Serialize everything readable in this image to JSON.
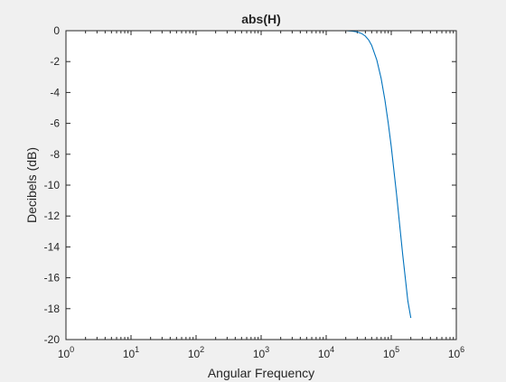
{
  "chart_data": {
    "type": "line",
    "title": "abs(H)",
    "xlabel": "Angular Frequency",
    "ylabel": "Decibels (dB)",
    "xscale": "log",
    "xlim": [
      1,
      1000000
    ],
    "ylim": [
      -20,
      0
    ],
    "grid": false,
    "x_ticks": [
      {
        "base": "10",
        "exp": "0"
      },
      {
        "base": "10",
        "exp": "1"
      },
      {
        "base": "10",
        "exp": "2"
      },
      {
        "base": "10",
        "exp": "3"
      },
      {
        "base": "10",
        "exp": "4"
      },
      {
        "base": "10",
        "exp": "5"
      },
      {
        "base": "10",
        "exp": "6"
      }
    ],
    "y_ticks": [
      "0",
      "-2",
      "-4",
      "-6",
      "-8",
      "-10",
      "-12",
      "-14",
      "-16",
      "-18",
      "-20"
    ],
    "series": [
      {
        "color": "#0072bd",
        "x": [
          1,
          10,
          100,
          1000,
          10000,
          20000,
          25000,
          30000,
          35000,
          40000,
          45000,
          50000,
          60000,
          70000,
          80000,
          90000,
          100000,
          120000,
          150000,
          180000,
          200000
        ],
        "y": [
          0,
          0,
          0,
          0,
          0,
          0,
          -0.03,
          -0.08,
          -0.18,
          -0.35,
          -0.6,
          -0.95,
          -1.9,
          -3.1,
          -4.5,
          -6.0,
          -7.5,
          -10.5,
          -14.5,
          -17.5,
          -18.6
        ]
      }
    ]
  }
}
